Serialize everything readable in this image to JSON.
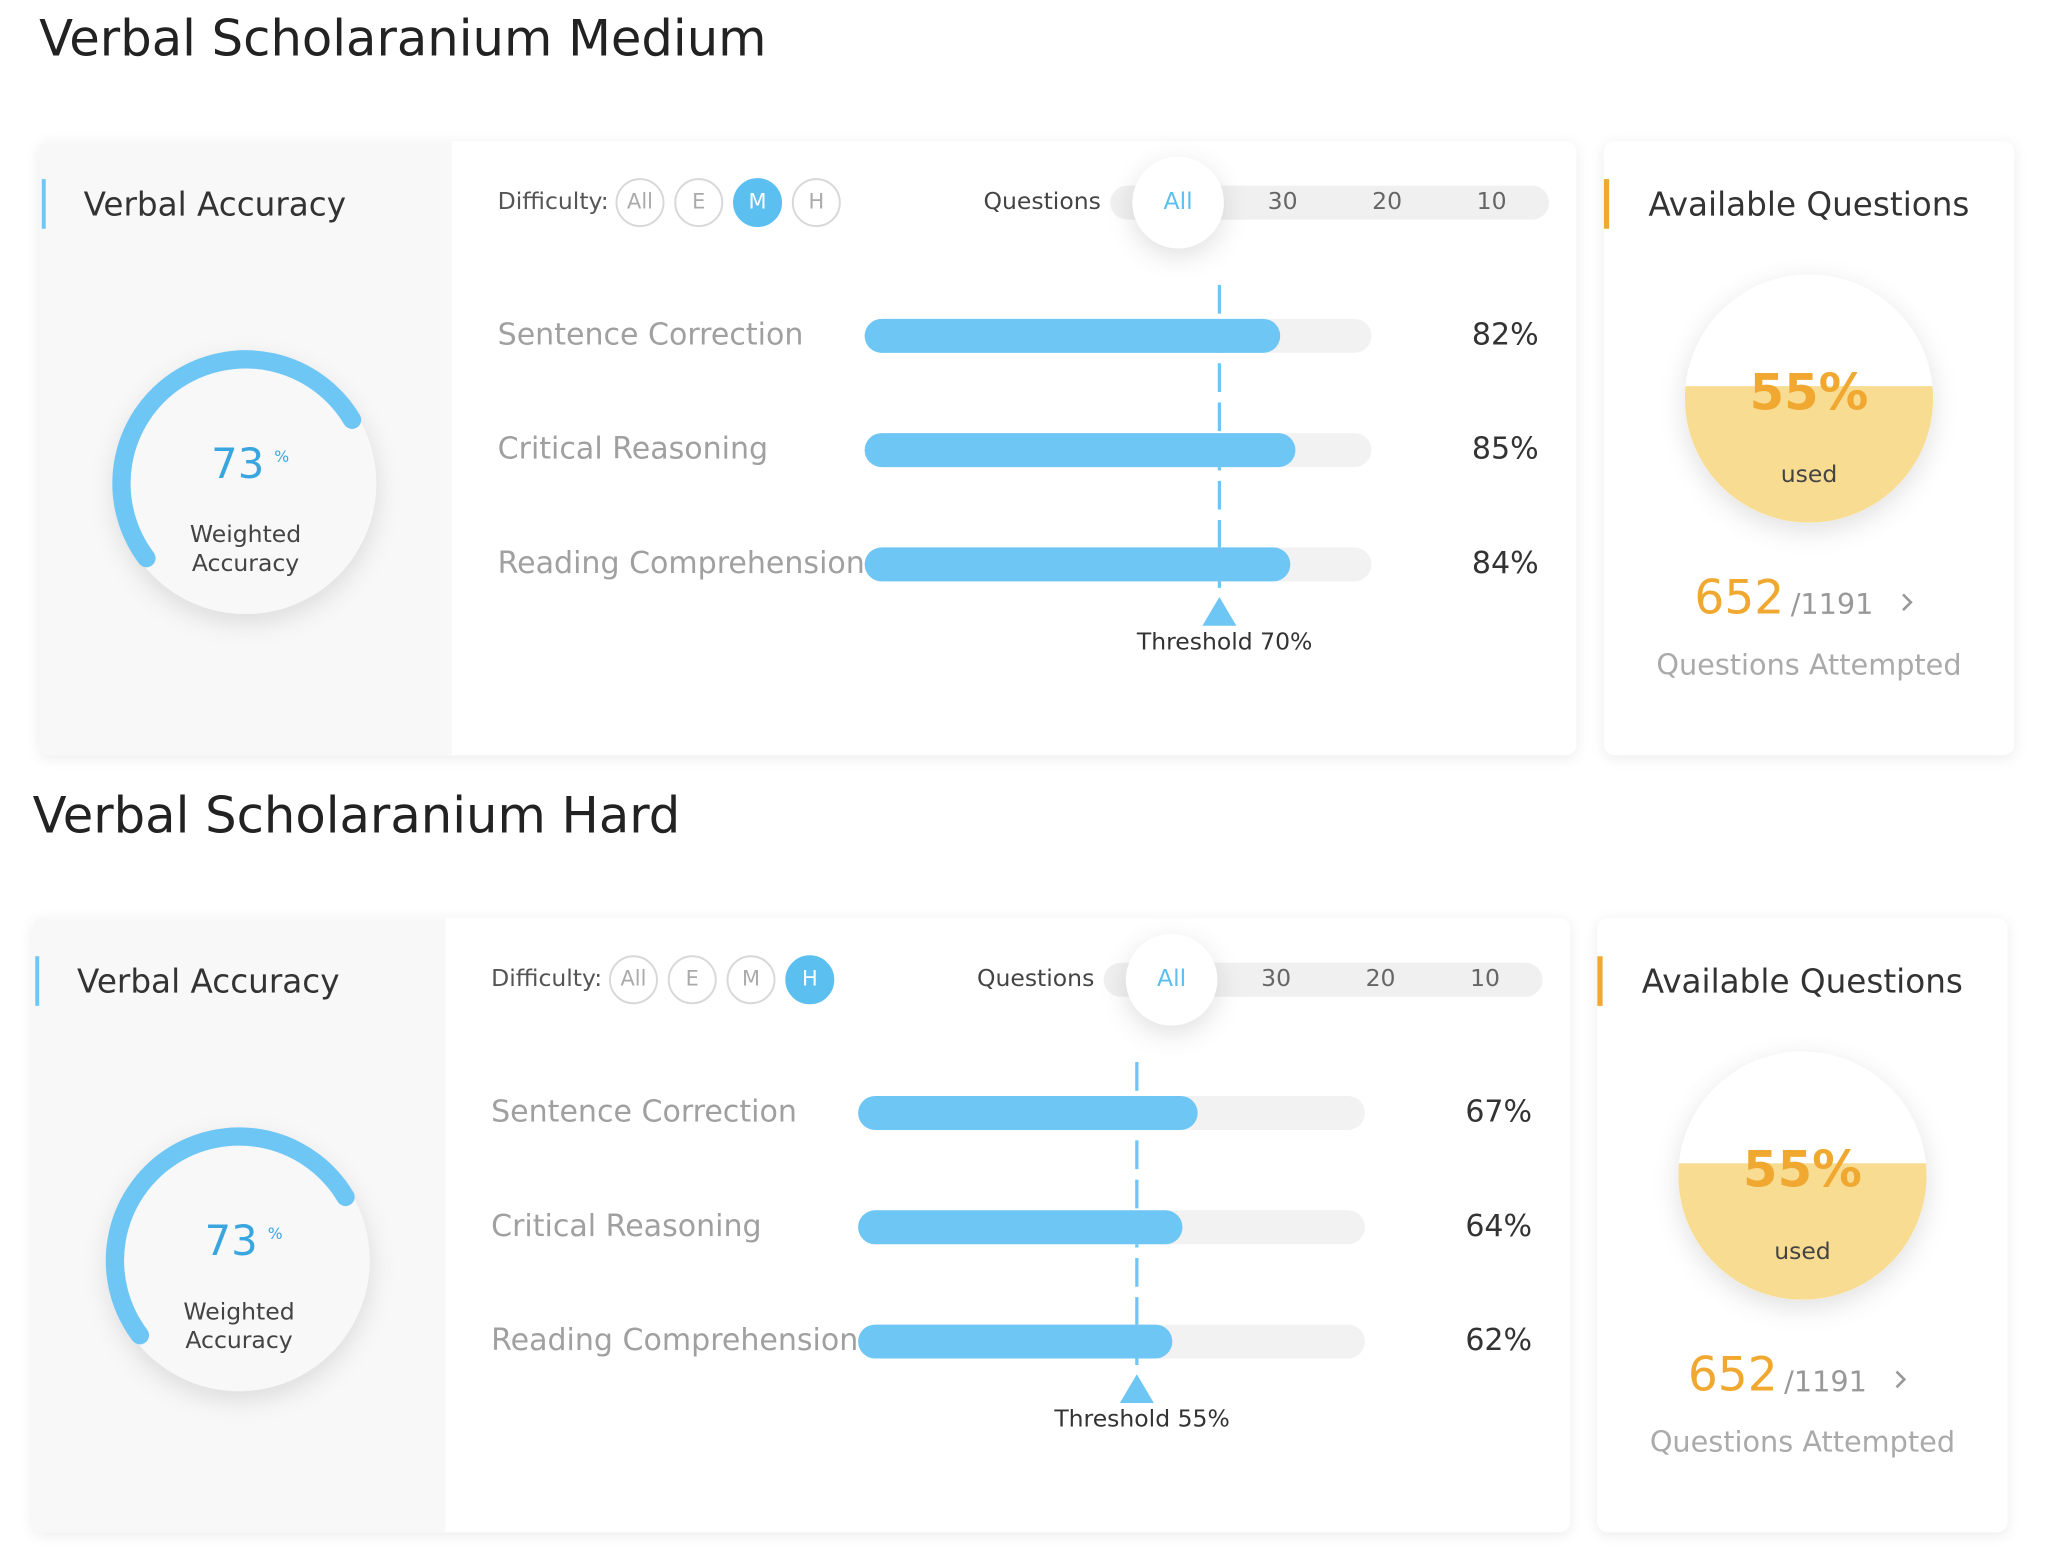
{
  "sections": [
    {
      "title": "Verbal Scholaranium Medium",
      "accuracy": {
        "title": "Verbal Accuracy",
        "value": 73,
        "unit": "%",
        "caption": [
          "Weighted",
          "Accuracy"
        ]
      },
      "filters": {
        "difficulty_label": "Difficulty:",
        "difficulty_options": [
          "All",
          "E",
          "M",
          "H"
        ],
        "difficulty_selected": 2,
        "questions_label": "Questions",
        "questions_options": [
          "All",
          "30",
          "20",
          "10"
        ],
        "questions_selected": 0
      },
      "rows": [
        {
          "name": "Sentence Correction",
          "value": 82,
          "label": "82%"
        },
        {
          "name": "Critical Reasoning",
          "value": 85,
          "label": "85%"
        },
        {
          "name": "Reading Comprehension",
          "value": 84,
          "label": "84%"
        }
      ],
      "threshold": {
        "value": 70,
        "label": "Threshold 70%"
      },
      "available": {
        "title": "Available Questions",
        "used": {
          "value": 55,
          "label": "55%"
        },
        "used_caption": "used",
        "attempted": 652,
        "total": "/1191",
        "caption": "Questions Attempted"
      }
    },
    {
      "title": "Verbal Scholaranium Hard",
      "accuracy": {
        "title": "Verbal Accuracy",
        "value": 73,
        "unit": "%",
        "caption": [
          "Weighted",
          "Accuracy"
        ]
      },
      "filters": {
        "difficulty_label": "Difficulty:",
        "difficulty_options": [
          "All",
          "E",
          "M",
          "H"
        ],
        "difficulty_selected": 3,
        "questions_label": "Questions",
        "questions_options": [
          "All",
          "30",
          "20",
          "10"
        ],
        "questions_selected": 0
      },
      "rows": [
        {
          "name": "Sentence Correction",
          "value": 67,
          "label": "67%"
        },
        {
          "name": "Critical Reasoning",
          "value": 64,
          "label": "64%"
        },
        {
          "name": "Reading Comprehension",
          "value": 62,
          "label": "62%"
        }
      ],
      "threshold": {
        "value": 55,
        "label": "Threshold 55%"
      },
      "available": {
        "title": "Available Questions",
        "used": {
          "value": 55,
          "label": "55%"
        },
        "used_caption": "used",
        "attempted": 652,
        "total": "/1191",
        "caption": "Questions Attempted"
      }
    }
  ]
}
